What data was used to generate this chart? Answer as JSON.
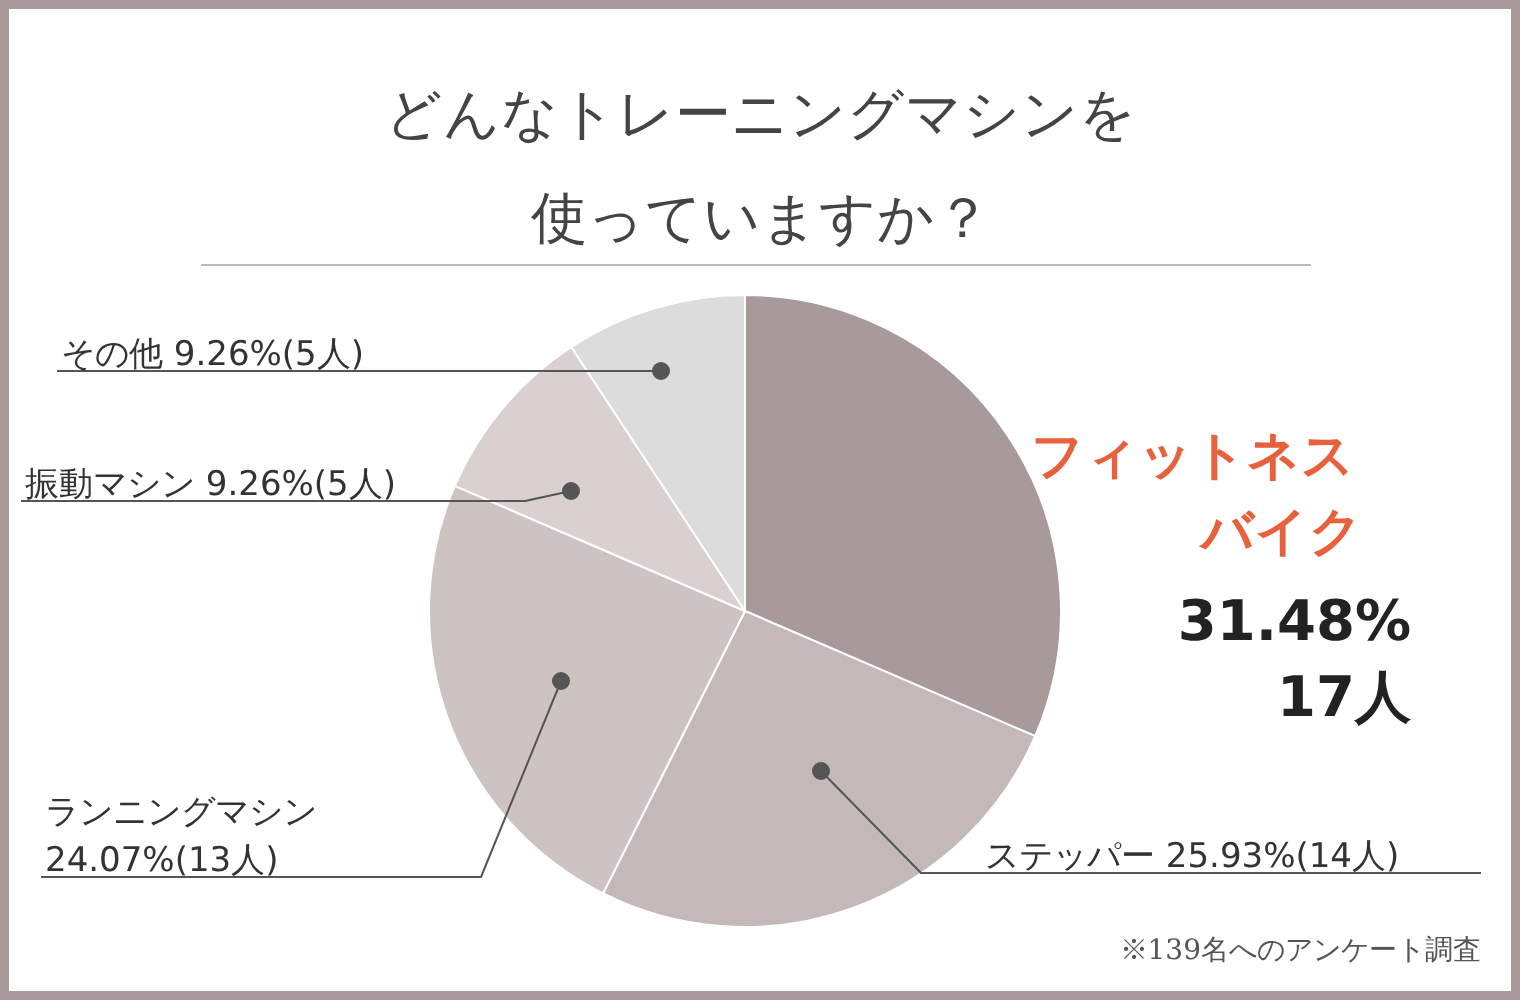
{
  "chart_data": {
    "type": "pie",
    "title": "どんなトレーニングマシンを使っていますか？",
    "categories": [
      "フィットネスバイク",
      "ステッパー",
      "ランニングマシン",
      "振動マシン",
      "その他"
    ],
    "values": [
      31.48,
      25.93,
      24.07,
      9.26,
      9.26
    ],
    "colors": [
      "#a89a9a",
      "#c4b9b8",
      "#cdc3c2",
      "#d9d0cf",
      "#dcdcdc"
    ],
    "value_labels": [
      "31.48% 17人",
      "25.93%(14人)",
      "24.07%(13人)",
      "9.26%(5人)",
      "9.26%(5人)"
    ],
    "annotations": [
      "※139名へのアンケート調査"
    ]
  }
}
